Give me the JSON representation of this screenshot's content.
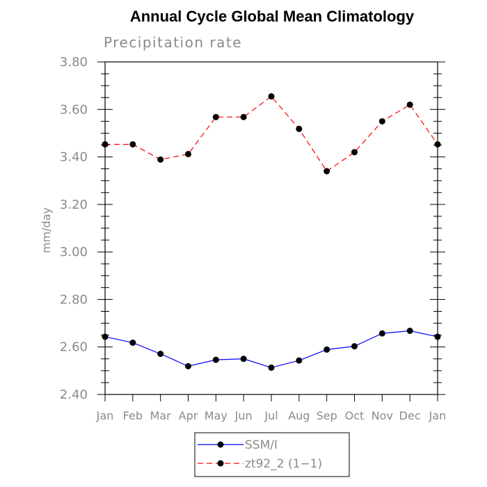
{
  "chart_data": {
    "type": "line",
    "title": "Annual Cycle Global Mean Climatology",
    "subtitle": "Precipitation rate",
    "ylabel": "mm/day",
    "xlabel": "",
    "categories": [
      "Jan",
      "Feb",
      "Mar",
      "Apr",
      "May",
      "Jun",
      "Jul",
      "Aug",
      "Sep",
      "Oct",
      "Nov",
      "Dec",
      "Jan"
    ],
    "ylim": [
      2.4,
      3.8
    ],
    "yticks": [
      "2.40",
      "2.60",
      "2.80",
      "3.00",
      "3.20",
      "3.40",
      "3.60",
      "3.80"
    ],
    "grid": false,
    "legend_position": "bottom-center",
    "series": [
      {
        "name": "SSM/I",
        "color": "#0000ff",
        "dash": "solid",
        "values": [
          2.643,
          2.618,
          2.571,
          2.519,
          2.546,
          2.55,
          2.513,
          2.543,
          2.589,
          2.603,
          2.657,
          2.668,
          2.643
        ]
      },
      {
        "name": "zt92_2 (1−1)",
        "color": "#ff0000",
        "dash": "dashed",
        "values": [
          3.453,
          3.453,
          3.389,
          3.412,
          3.568,
          3.568,
          3.655,
          3.518,
          3.34,
          3.42,
          3.55,
          3.62,
          3.453
        ]
      }
    ]
  }
}
